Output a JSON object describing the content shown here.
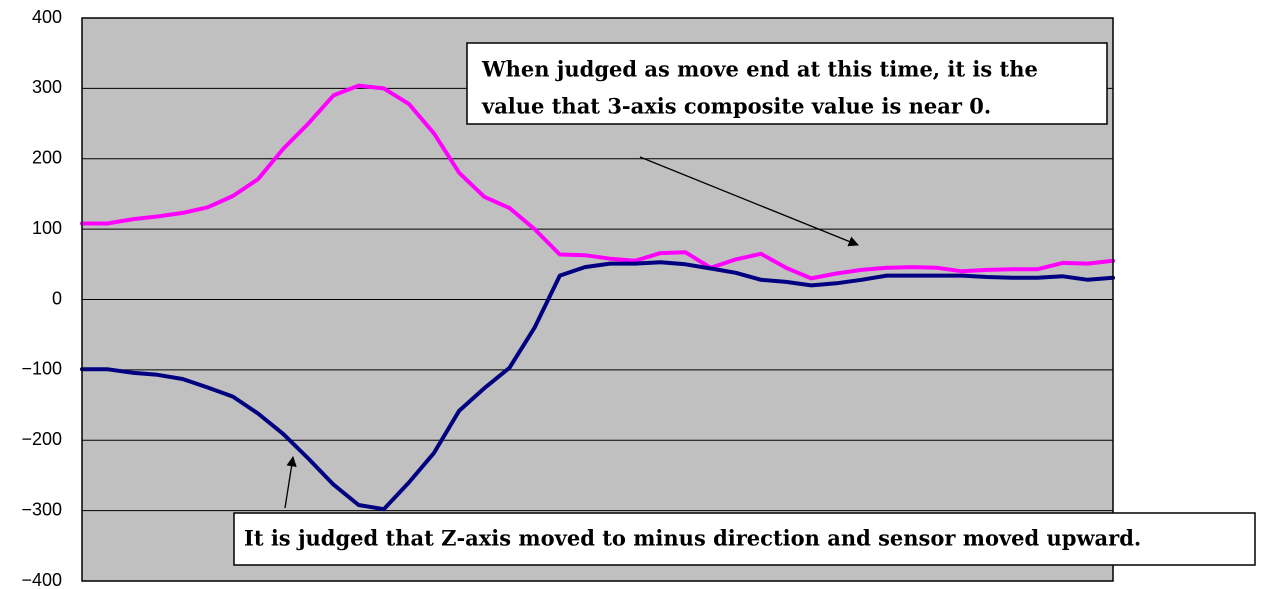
{
  "chart_data": {
    "type": "line",
    "x": [
      0,
      1,
      2,
      3,
      4,
      5,
      6,
      7,
      8,
      9,
      10,
      11,
      12,
      13,
      14,
      15,
      16,
      17,
      18,
      19,
      20,
      21,
      22,
      23,
      24,
      25,
      26,
      27,
      28,
      29,
      30,
      31,
      32,
      33,
      34,
      35,
      36,
      37,
      38,
      39,
      40,
      41
    ],
    "xlim": [
      0,
      41
    ],
    "series": [
      {
        "color": "#ff00ff",
        "values": [
          108,
          108,
          114,
          118,
          123,
          131,
          147,
          171,
          214,
          250,
          290,
          304,
          300,
          278,
          236,
          180,
          146,
          130,
          100,
          64,
          63,
          58,
          55,
          66,
          67,
          45,
          57,
          65,
          45,
          30,
          37,
          42,
          45,
          46,
          45,
          40,
          42,
          43,
          43,
          52,
          51,
          55
        ]
      },
      {
        "color": "#000080",
        "values": [
          -99,
          -99,
          -104,
          -107,
          -113,
          -125,
          -138,
          -162,
          -191,
          -226,
          -263,
          -292,
          -298,
          -260,
          -218,
          -158,
          -126,
          -97,
          -40,
          34,
          46,
          51,
          51,
          53,
          50,
          44,
          38,
          28,
          25,
          20,
          23,
          28,
          34,
          34,
          34,
          34,
          32,
          31,
          31,
          33,
          28,
          31
        ]
      }
    ],
    "ylim": [
      -400,
      400
    ],
    "yticks": [
      {
        "value": -400,
        "label": "−400"
      },
      {
        "value": -300,
        "label": "−300"
      },
      {
        "value": -200,
        "label": "−200"
      },
      {
        "value": -100,
        "label": "−100"
      },
      0,
      100,
      200,
      300,
      400
    ],
    "grid": true,
    "annotations": [
      {
        "lines": [
          "When judged as move end at this time, it is the",
          "value that 3-axis composite value is near 0."
        ]
      },
      {
        "lines": [
          "It is judged that Z-axis moved to minus direction and sensor moved upward."
        ]
      }
    ]
  }
}
